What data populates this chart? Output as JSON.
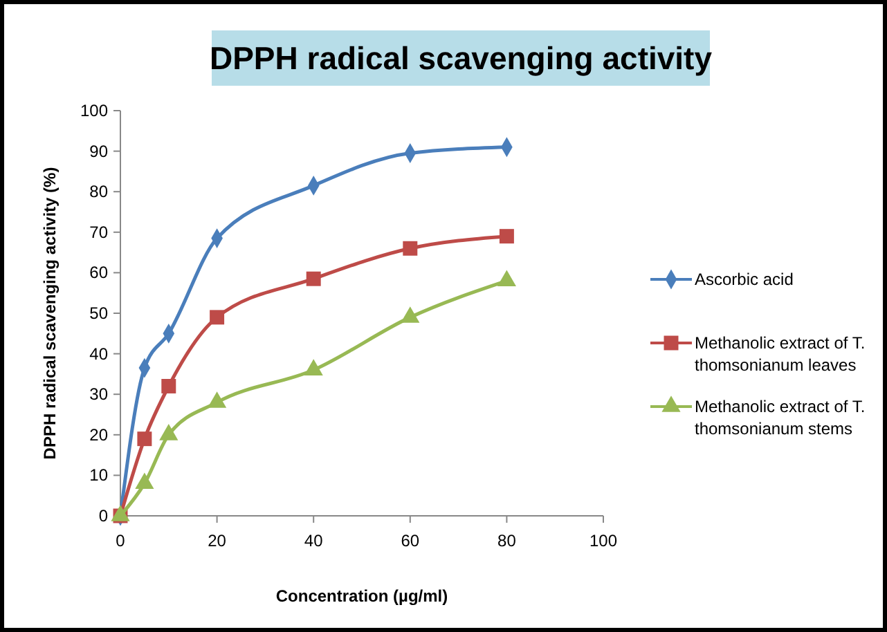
{
  "chart_data": {
    "type": "line",
    "title": "DPPH radical scavenging activity",
    "xlabel": "Concentration (µg/ml)",
    "ylabel": "DPPH radical scavenging activity (%)",
    "x": [
      0,
      5,
      10,
      20,
      40,
      60,
      80
    ],
    "xlim": [
      0,
      100
    ],
    "xticks": [
      0,
      20,
      40,
      60,
      80,
      100
    ],
    "ylim": [
      0,
      100
    ],
    "yticks": [
      0,
      10,
      20,
      30,
      40,
      50,
      60,
      70,
      80,
      90,
      100
    ],
    "grid": false,
    "legend": "right",
    "line_style": "solid",
    "series": [
      {
        "name": "Ascorbic acid",
        "color": "#4a7ebb",
        "marker": "diamond",
        "values": [
          0,
          36.5,
          45,
          68.5,
          81.5,
          89.5,
          91
        ]
      },
      {
        "name": "Methanolic extract of T. thomsonianum leaves",
        "color": "#be4b48",
        "marker": "square",
        "values": [
          0,
          19,
          32,
          49,
          58.5,
          66,
          69
        ]
      },
      {
        "name": "Methanolic extract of T. thomsonianum stems",
        "color": "#98b954",
        "marker": "triangle",
        "values": [
          0,
          8,
          20,
          28,
          36,
          49,
          58
        ]
      }
    ]
  }
}
